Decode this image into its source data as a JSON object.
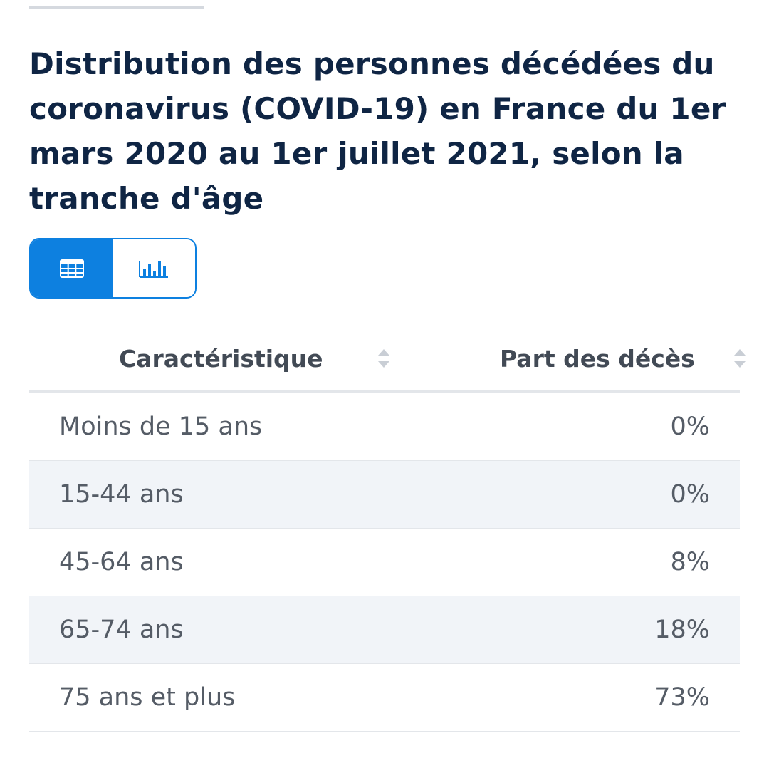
{
  "title": "Distribution des personnes décédées du coronavirus (COVID-19) en France du 1er mars 2020 au 1er juillet 2021, selon la tranche d'âge",
  "view_toggle": {
    "table_icon": "table-icon",
    "chart_icon": "bar-chart-icon",
    "active": "table"
  },
  "table": {
    "headers": [
      "Caractéristique",
      "Part des décès"
    ],
    "rows": [
      {
        "label": "Moins de 15 ans",
        "value": "0%"
      },
      {
        "label": "15-44 ans",
        "value": "0%"
      },
      {
        "label": "45-64 ans",
        "value": "8%"
      },
      {
        "label": "65-74 ans",
        "value": "18%"
      },
      {
        "label": "75 ans et plus",
        "value": "73%"
      }
    ]
  },
  "colors": {
    "accent": "#0d80e0",
    "title": "#0f2544",
    "row_alt": "#f1f4f8"
  }
}
